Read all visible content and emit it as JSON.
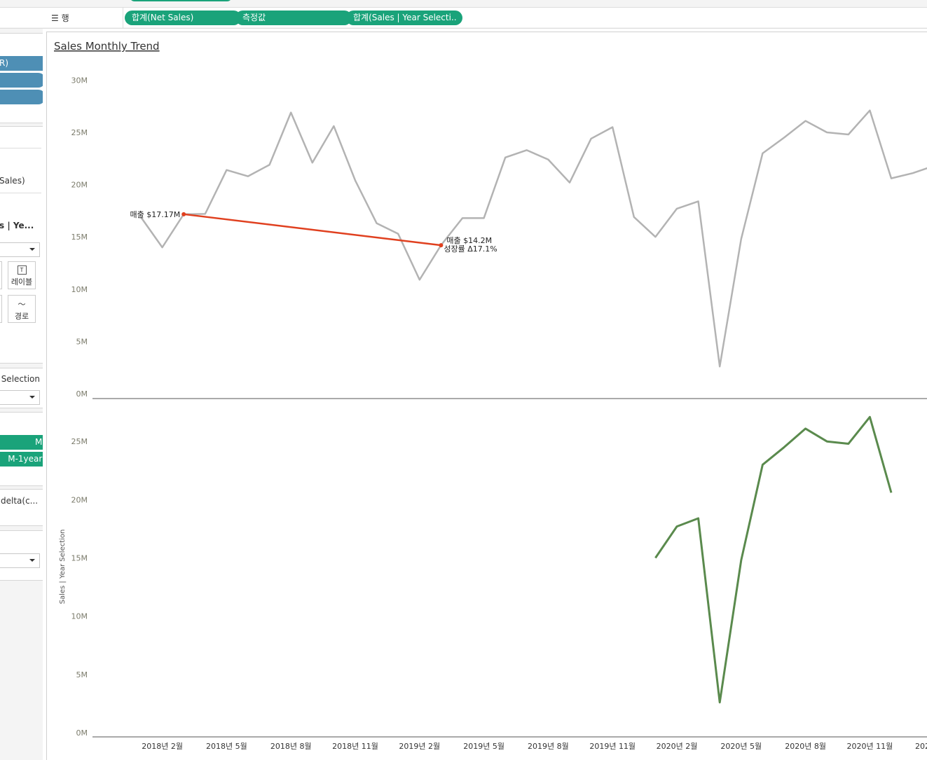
{
  "ui": {
    "rows_label": "행",
    "row_pills": [
      "합계(Net Sales)",
      "측정값",
      "합계(Sales | Year Selecti.."
    ],
    "left_panel": {
      "top_pill": "R)",
      "field_1": "Sales)",
      "field_2": "s | Ye...",
      "mark_label": "레이블",
      "mark_path": "경로",
      "filter_title": "Selection",
      "green_pills": [
        "M)",
        "M-1year)"
      ],
      "field_3": "delta(c..."
    }
  },
  "chart_data": [
    {
      "type": "line",
      "title": "Sales Monthly Trend",
      "color": "#b3b3b3",
      "values": [
        16.9,
        14.0,
        17.17,
        17.2,
        21.4,
        20.8,
        21.9,
        26.9,
        22.1,
        25.6,
        20.4,
        16.3,
        15.3,
        10.9,
        14.2,
        16.8,
        16.8,
        22.6,
        23.3,
        22.4,
        20.2,
        24.4,
        25.5,
        16.9,
        15.0,
        17.7,
        18.4,
        2.6,
        14.8,
        23.0,
        24.5,
        26.1,
        25.0,
        24.8,
        27.1,
        20.6,
        21.1,
        21.8
      ],
      "ylim": [
        0,
        31.3
      ],
      "yticks": [
        {
          "value": 0,
          "label": "0M"
        },
        {
          "value": 5,
          "label": "5M"
        },
        {
          "value": 10,
          "label": "10M"
        },
        {
          "value": 15,
          "label": "15M"
        },
        {
          "value": 20,
          "label": "20M"
        },
        {
          "value": 25,
          "label": "25M"
        },
        {
          "value": 30,
          "label": "30M"
        }
      ],
      "annotation_color": "#e0401f",
      "annotations": [
        {
          "label": "매출 $17.17M",
          "value": 17.17
        },
        {
          "label": "매출 $14.2M",
          "sublabel": "성장률 Δ17.1%",
          "value": 14.2
        }
      ]
    },
    {
      "type": "line",
      "y_label": "Sales | Year Selection",
      "color": "#5a8a4d",
      "categories": [
        null,
        "2018년 2월",
        null,
        null,
        "2018년 5월",
        null,
        null,
        "2018년 8월",
        null,
        null,
        "2018년 11월",
        null,
        null,
        "2019년 2월",
        null,
        null,
        "2019년 5월",
        null,
        null,
        "2019년 8월",
        null,
        null,
        "2019년 11월",
        null,
        null,
        "2020년 2월",
        null,
        null,
        "2020년 5월",
        null,
        null,
        "2020년 8월",
        null,
        null,
        "2020년 11월",
        null,
        null,
        "202"
      ],
      "values": [
        null,
        null,
        null,
        null,
        null,
        null,
        null,
        null,
        null,
        null,
        null,
        null,
        null,
        null,
        null,
        null,
        null,
        null,
        null,
        null,
        null,
        null,
        null,
        null,
        15.0,
        17.7,
        18.4,
        2.6,
        14.8,
        23.0,
        24.5,
        26.1,
        25.0,
        24.8,
        27.1,
        20.6,
        null,
        null
      ],
      "ylim": [
        0,
        28.5
      ],
      "yticks": [
        {
          "value": 0,
          "label": "0M"
        },
        {
          "value": 5,
          "label": "5M"
        },
        {
          "value": 10,
          "label": "10M"
        },
        {
          "value": 15,
          "label": "15M"
        },
        {
          "value": 20,
          "label": "20M"
        },
        {
          "value": 25,
          "label": "25M"
        }
      ]
    }
  ]
}
